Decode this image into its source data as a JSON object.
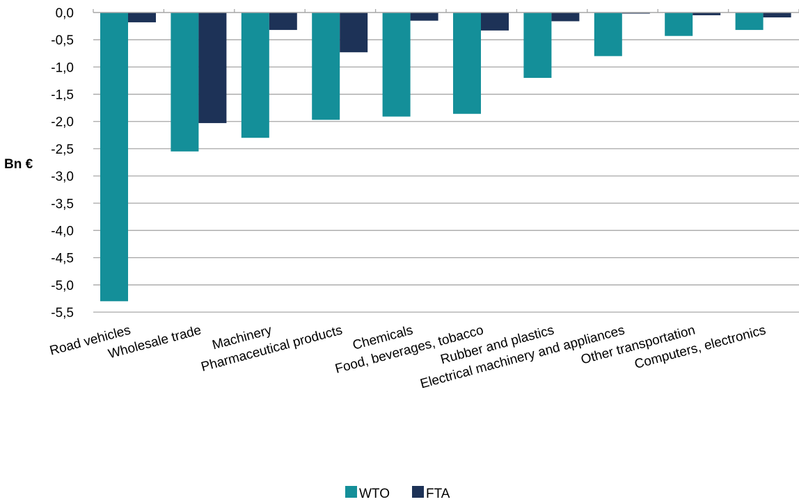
{
  "chart_data": {
    "type": "bar",
    "ylabel": "Bn €",
    "xlabel": "",
    "ylim": [
      -5.5,
      0.0
    ],
    "ytick_step": 0.5,
    "grid": true,
    "legend_position": "bottom",
    "categories": [
      "Road vehicles",
      "Wholesale trade",
      "Machinery",
      "Pharmaceutical products",
      "Chemicals",
      "Food, beverages, tobacco",
      "Rubber and plastics",
      "Electrical machinery and appliances",
      "Other transportation",
      "Computers, electronics"
    ],
    "series": [
      {
        "name": "WTO",
        "color": "#148f99",
        "values": [
          -5.3,
          -2.55,
          -2.3,
          -1.97,
          -1.91,
          -1.86,
          -1.2,
          -0.8,
          -0.43,
          -0.32
        ]
      },
      {
        "name": "FTA",
        "color": "#1d3257",
        "values": [
          -0.18,
          -2.03,
          -0.32,
          -0.73,
          -0.15,
          -0.33,
          -0.16,
          -0.02,
          -0.05,
          -0.09
        ]
      }
    ]
  }
}
